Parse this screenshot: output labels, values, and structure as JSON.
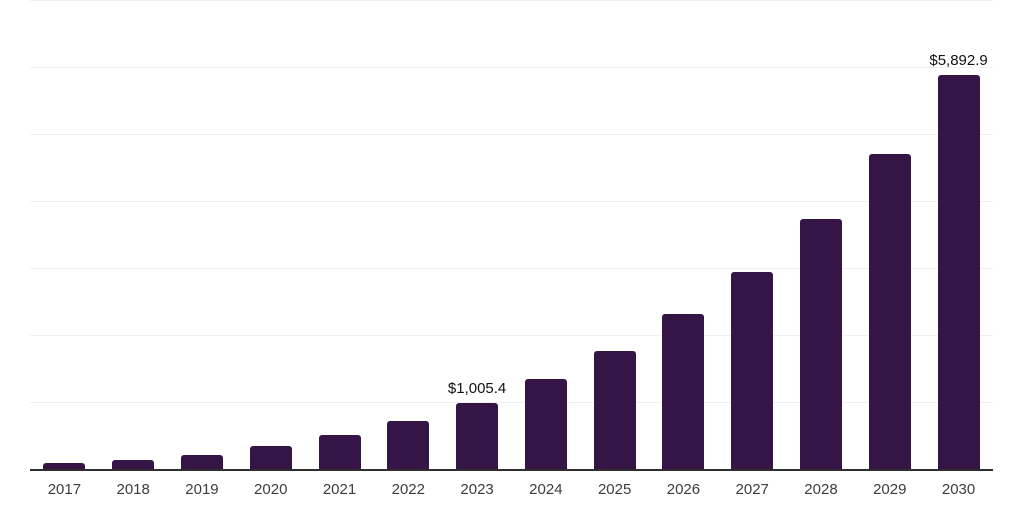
{
  "chart_data": {
    "type": "bar",
    "title": "",
    "xlabel": "",
    "ylabel": "",
    "categories": [
      "2017",
      "2018",
      "2019",
      "2020",
      "2021",
      "2022",
      "2023",
      "2024",
      "2025",
      "2026",
      "2027",
      "2028",
      "2029",
      "2030"
    ],
    "values": [
      105,
      150,
      222,
      357,
      527,
      730,
      1005.4,
      1353,
      1780,
      2323,
      2959,
      3745,
      4715,
      5892.9
    ],
    "point_labels": [
      "",
      "",
      "",
      "",
      "",
      "",
      "$1,005.4",
      "",
      "",
      "",
      "",
      "",
      "",
      "$5,892.9"
    ],
    "ylim": [
      0,
      7000
    ],
    "gridline_step": 1000,
    "grid": "horizontal-light",
    "legend": "none",
    "bar_color": "#351546",
    "axis_line_color": "#2e2e2e",
    "gridline_color": "#f0f0f0",
    "tick_label_color": "#3d3d3d",
    "value_label_color": "#111111"
  }
}
